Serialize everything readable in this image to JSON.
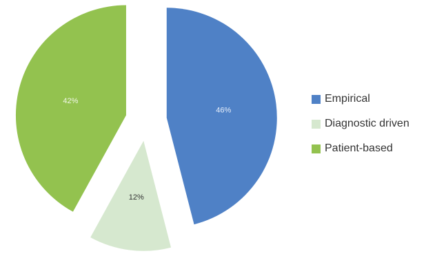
{
  "chart_data": {
    "type": "pie",
    "exploded": true,
    "categories": [
      "Empirical",
      "Diagnostic driven",
      "Patient-based"
    ],
    "values": [
      46,
      12,
      42
    ],
    "value_labels": [
      "46%",
      "12%",
      "42%"
    ],
    "colors": [
      "#4f81c6",
      "#d6e8cf",
      "#93c24f"
    ],
    "label_colors": [
      "#e8f0fb",
      "#333333",
      "#f2f8e8"
    ],
    "legend": {
      "position": "right",
      "entries": [
        "Empirical",
        "Diagnostic driven",
        "Patient-based"
      ]
    }
  }
}
